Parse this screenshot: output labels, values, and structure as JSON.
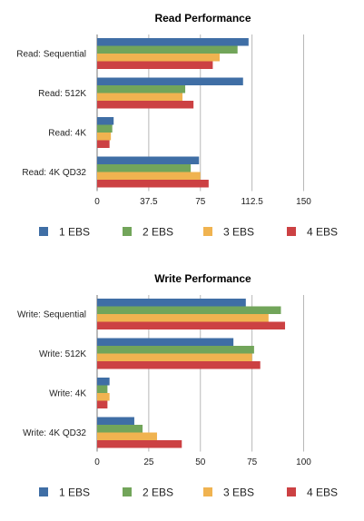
{
  "chart_data": [
    {
      "type": "bar",
      "orientation": "horizontal",
      "title": "Read Performance",
      "categories": [
        "Read: Sequential",
        "Read: 512K",
        "Read: 4K",
        "Read: 4K QD32"
      ],
      "xlim": [
        0,
        180
      ],
      "xticks": [
        0,
        37.5,
        75,
        112.5,
        150
      ],
      "xtick_labels": [
        "0",
        "37.5",
        "75",
        "112.5",
        "150"
      ],
      "grid": true,
      "legend_position": "bottom",
      "series": [
        {
          "name": "1 EBS",
          "color": "#3f6ea5",
          "values": [
            110,
            106,
            12,
            74
          ]
        },
        {
          "name": "2 EBS",
          "color": "#72a55a",
          "values": [
            102,
            64,
            11,
            68
          ]
        },
        {
          "name": "3 EBS",
          "color": "#f0b350",
          "values": [
            89,
            62,
            10,
            75
          ]
        },
        {
          "name": "4 EBS",
          "color": "#cc4143",
          "values": [
            84,
            70,
            9,
            81
          ]
        }
      ]
    },
    {
      "type": "bar",
      "orientation": "horizontal",
      "title": "Write Performance",
      "categories": [
        "Write: Sequential",
        "Write: 512K",
        "Write: 4K",
        "Write: 4K QD32"
      ],
      "xlim": [
        0,
        120
      ],
      "xticks": [
        0,
        25,
        50,
        75,
        100
      ],
      "xtick_labels": [
        "0",
        "25",
        "50",
        "75",
        "100"
      ],
      "grid": true,
      "legend_position": "bottom",
      "series": [
        {
          "name": "1 EBS",
          "color": "#3f6ea5",
          "values": [
            72,
            66,
            6,
            18
          ]
        },
        {
          "name": "2 EBS",
          "color": "#72a55a",
          "values": [
            89,
            76,
            5,
            22
          ]
        },
        {
          "name": "3 EBS",
          "color": "#f0b350",
          "values": [
            83,
            75,
            6,
            29
          ]
        },
        {
          "name": "4 EBS",
          "color": "#cc4143",
          "values": [
            91,
            79,
            5,
            41
          ]
        }
      ]
    }
  ]
}
